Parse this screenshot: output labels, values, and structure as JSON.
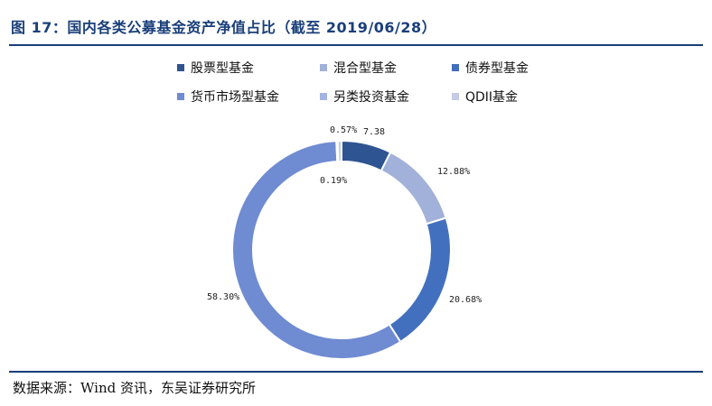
{
  "header": {
    "title": "图 17：国内各类公募基金资产净值占比（截至 2019/06/28）"
  },
  "footer": {
    "source": "数据来源：Wind 资讯，东吴证券研究所"
  },
  "chart_data": {
    "type": "pie",
    "donut": true,
    "legend_position": "top",
    "series": [
      {
        "name": "股票型基金",
        "value": 7.38,
        "label": "7.38",
        "color": "#2e5491"
      },
      {
        "name": "混合型基金",
        "value": 12.88,
        "label": "12.88%",
        "color": "#a1b1d9"
      },
      {
        "name": "债券型基金",
        "value": 20.68,
        "label": "20.68%",
        "color": "#4270be"
      },
      {
        "name": "货币市场型基金",
        "value": 58.3,
        "label": "58.30%",
        "color": "#6f8bd1"
      },
      {
        "name": "另类投资基金",
        "value": 0.19,
        "label": "0.19%",
        "color": "#a3b4e1"
      },
      {
        "name": "QDII基金",
        "value": 0.57,
        "label": "0.57%",
        "color": "#c4cce4"
      }
    ]
  }
}
